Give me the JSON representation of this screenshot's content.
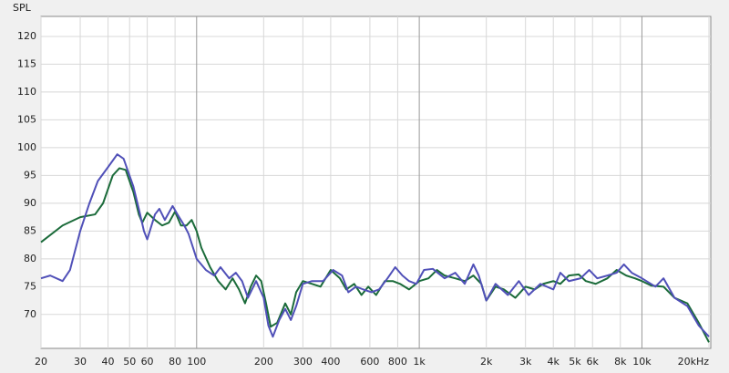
{
  "chart_data": {
    "type": "line",
    "y_label": "SPL",
    "xscale": "log",
    "grid": true,
    "xlim": [
      20,
      20000
    ],
    "ylim": [
      63.9,
      123.6
    ],
    "yticks": [
      70,
      75,
      80,
      85,
      90,
      95,
      100,
      105,
      110,
      115,
      120
    ],
    "xticks": [
      20,
      30,
      40,
      50,
      60,
      80,
      100,
      200,
      300,
      400,
      600,
      800,
      {
        "value": 1000,
        "label": "1k"
      },
      {
        "value": 2000,
        "label": "2k"
      },
      {
        "value": 3000,
        "label": "3k"
      },
      {
        "value": 4000,
        "label": "4k"
      },
      {
        "value": 5000,
        "label": "5k"
      },
      {
        "value": 6000,
        "label": "6k"
      },
      {
        "value": 8000,
        "label": "8k"
      },
      {
        "value": 10000,
        "label": "10k"
      },
      {
        "value": 20000,
        "label": "20kHz"
      }
    ],
    "major_x": [
      100,
      1000,
      10000
    ],
    "series": [
      {
        "color": "#1b6b3a",
        "x": [
          20,
          25,
          30,
          35,
          38,
          42,
          45,
          48,
          52,
          55,
          57,
          60,
          65,
          70,
          75,
          80,
          85,
          90,
          95,
          100,
          105,
          115,
          125,
          135,
          145,
          155,
          165,
          175,
          185,
          195,
          205,
          215,
          230,
          250,
          265,
          280,
          300,
          330,
          360,
          400,
          440,
          470,
          510,
          550,
          590,
          640,
          700,
          760,
          820,
          900,
          1000,
          1100,
          1200,
          1300,
          1450,
          1600,
          1750,
          1900,
          2000,
          2200,
          2400,
          2700,
          3000,
          3300,
          3600,
          4000,
          4300,
          4700,
          5200,
          5600,
          6200,
          7000,
          7700,
          8500,
          9300,
          10000,
          11000,
          12500,
          14000,
          16000,
          18000,
          20000
        ],
        "values": [
          83,
          86,
          87.5,
          88,
          90,
          95,
          96.3,
          96,
          92,
          88,
          86.5,
          88.3,
          87,
          86,
          86.5,
          88.5,
          86,
          86,
          87,
          85,
          82,
          78.5,
          76,
          74.5,
          76.5,
          74.5,
          72,
          75,
          77,
          76,
          72,
          67.8,
          68.5,
          72,
          70,
          74,
          76,
          75.5,
          75,
          78,
          76.5,
          74.5,
          75.5,
          73.5,
          75,
          73.5,
          76,
          76,
          75.5,
          74.5,
          76,
          76.5,
          78,
          77,
          76.5,
          76,
          77,
          75.5,
          72.5,
          75,
          74.5,
          73,
          75,
          74.5,
          75.5,
          76,
          75.5,
          77,
          77.2,
          76,
          75.5,
          76.5,
          78,
          77,
          76.5,
          76,
          75.2,
          75,
          73,
          72,
          68.5,
          65
        ]
      },
      {
        "color": "#5050b8",
        "x": [
          20,
          22,
          25,
          27,
          30,
          33,
          36,
          40,
          44,
          47,
          52,
          55,
          58,
          60,
          65,
          68,
          72,
          78,
          82,
          88,
          92,
          100,
          110,
          120,
          128,
          140,
          150,
          160,
          170,
          185,
          200,
          210,
          220,
          235,
          250,
          265,
          280,
          300,
          330,
          370,
          410,
          450,
          480,
          520,
          560,
          610,
          660,
          720,
          780,
          840,
          900,
          970,
          1050,
          1150,
          1300,
          1450,
          1600,
          1750,
          1850,
          2000,
          2200,
          2500,
          2800,
          3100,
          3500,
          4000,
          4300,
          4700,
          5300,
          5800,
          6300,
          7000,
          7700,
          8300,
          9000,
          10000,
          11500,
          12500,
          14000,
          16000,
          18000,
          20000
        ],
        "values": [
          76.5,
          77,
          76,
          78,
          85,
          90,
          94,
          96.5,
          98.8,
          98,
          93,
          89,
          85,
          83.5,
          88,
          89,
          87,
          89.5,
          88,
          86,
          84.5,
          80,
          78,
          77,
          78.5,
          76.5,
          77.5,
          76,
          73,
          76,
          73,
          68,
          66,
          69,
          71,
          69,
          71.5,
          75.5,
          76,
          76,
          78,
          77,
          74,
          75,
          74.5,
          74,
          74.5,
          76.5,
          78.5,
          77,
          76,
          75.5,
          78,
          78.2,
          76.5,
          77.5,
          75.5,
          79,
          77,
          72.5,
          75.5,
          73.5,
          76,
          73.5,
          75.5,
          74.5,
          77.5,
          76,
          76.5,
          78,
          76.5,
          77,
          77.5,
          79,
          77.5,
          76.5,
          75,
          76.5,
          73,
          71.5,
          68,
          66
        ]
      }
    ]
  }
}
